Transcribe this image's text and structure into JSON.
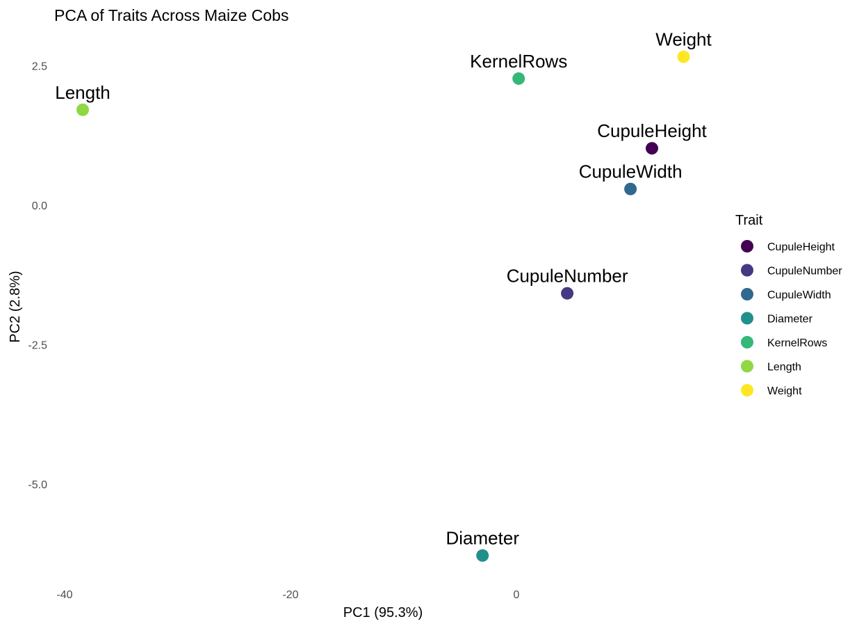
{
  "chart_data": {
    "type": "scatter",
    "title": "PCA of Traits Across Maize Cobs",
    "xlabel": "PC1 (95.3%)",
    "ylabel": "PC2 (2.8%)",
    "xlim": [
      -41,
      31
    ],
    "ylim": [
      -6.9,
      3.1
    ],
    "xticks": [
      -40,
      -20,
      0
    ],
    "xtick_labels": [
      "-40",
      "-20",
      "0"
    ],
    "yticks": [
      2.5,
      0.0,
      -2.5,
      -5.0
    ],
    "ytick_labels": [
      "2.5",
      "0.0",
      "-2.5",
      "-5.0"
    ],
    "grid": false,
    "legend": {
      "title": "Trait",
      "position": "right"
    },
    "points": [
      {
        "label": "CupuleHeight",
        "x": 12.0,
        "y": 1.02,
        "color": "#440154"
      },
      {
        "label": "CupuleNumber",
        "x": 4.5,
        "y": -1.58,
        "color": "#443A83"
      },
      {
        "label": "CupuleWidth",
        "x": 10.1,
        "y": 0.29,
        "color": "#31688E"
      },
      {
        "label": "Diameter",
        "x": -3.0,
        "y": -6.28,
        "color": "#21908C"
      },
      {
        "label": "KernelRows",
        "x": 0.2,
        "y": 2.27,
        "color": "#35B779"
      },
      {
        "label": "Length",
        "x": -38.4,
        "y": 1.71,
        "color": "#8FD744"
      },
      {
        "label": "Weight",
        "x": 14.8,
        "y": 2.66,
        "color": "#FDE725"
      }
    ]
  }
}
